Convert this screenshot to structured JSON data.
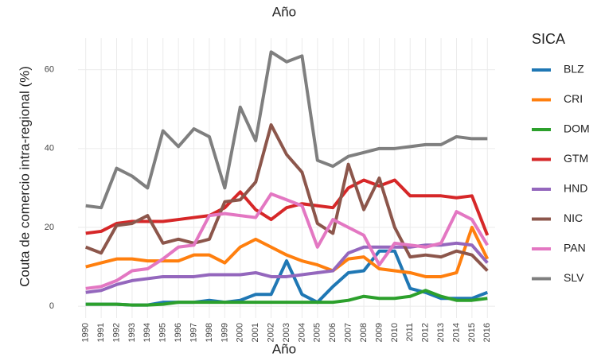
{
  "chart_data": {
    "type": "line",
    "title": "Año",
    "x_label": "Año",
    "y_label": "Couta de comercio intra-regional (%)",
    "legend_title": "SICA",
    "legend": "right",
    "grid": true,
    "x": [
      1990,
      1991,
      1992,
      1993,
      1994,
      1995,
      1996,
      1997,
      1998,
      1999,
      2000,
      2001,
      2002,
      2003,
      2004,
      2005,
      2006,
      2007,
      2008,
      2009,
      2010,
      2011,
      2012,
      2013,
      2014,
      2015,
      2016
    ],
    "xlim": [
      1989.5,
      2016.5
    ],
    "xticks": [
      1990,
      1991,
      1992,
      1993,
      1994,
      1995,
      1996,
      1997,
      1998,
      1999,
      2000,
      2001,
      2002,
      2003,
      2004,
      2005,
      2006,
      2007,
      2008,
      2009,
      2010,
      2011,
      2012,
      2013,
      2014,
      2015,
      2016
    ],
    "ylim": [
      -3,
      68
    ],
    "yticks": [
      0,
      20,
      40,
      60
    ],
    "series": [
      {
        "name": "BLZ",
        "color": "#1f77b4",
        "values": [
          0.5,
          0.5,
          0.5,
          0.3,
          0.3,
          1,
          1,
          1,
          1.5,
          1,
          1.5,
          3,
          3,
          11.5,
          3,
          1,
          5,
          8.5,
          9,
          14,
          14,
          4.5,
          3.5,
          2,
          2,
          2,
          3.5
        ]
      },
      {
        "name": "CRI",
        "color": "#ff7f0e",
        "values": [
          10,
          11,
          12,
          12,
          11.5,
          11.5,
          11.5,
          13,
          13,
          11,
          15,
          17,
          15,
          13,
          11.5,
          10.5,
          9,
          12,
          12.5,
          9.5,
          9,
          8.5,
          7.5,
          7.5,
          8.5,
          20,
          12
        ]
      },
      {
        "name": "DOM",
        "color": "#2ca02c",
        "values": [
          0.5,
          0.5,
          0.5,
          0.3,
          0.3,
          0.5,
          1,
          1,
          1,
          1,
          1,
          1,
          1,
          1,
          1,
          1,
          1,
          1.5,
          2.5,
          2,
          2,
          2.5,
          4,
          2.5,
          1.5,
          1.5,
          2
        ]
      },
      {
        "name": "GTM",
        "color": "#d62728",
        "values": [
          18.5,
          19,
          21,
          21.5,
          21.5,
          21.5,
          22,
          22.5,
          23,
          25,
          29,
          24.5,
          22,
          25,
          26,
          25.5,
          25,
          30,
          32,
          30.5,
          32,
          28,
          28,
          28,
          27.5,
          28,
          18
        ]
      },
      {
        "name": "HND",
        "color": "#9467bd",
        "values": [
          3.5,
          4,
          5.5,
          6.5,
          7,
          7.5,
          7.5,
          7.5,
          8,
          8,
          8,
          8.5,
          7.5,
          7.5,
          8,
          8.5,
          9,
          13.5,
          15,
          15,
          15,
          15,
          15.5,
          15.5,
          16,
          15.5,
          11
        ]
      },
      {
        "name": "NIC",
        "color": "#8c564b",
        "values": [
          15,
          13.5,
          20.5,
          21,
          23,
          16,
          17,
          16,
          17,
          26.5,
          27,
          31.5,
          46,
          38.5,
          34,
          21,
          18.5,
          36,
          24.5,
          32.5,
          20,
          12.5,
          13,
          12.5,
          14,
          13,
          9
        ]
      },
      {
        "name": "PAN",
        "color": "#e377c2",
        "values": [
          4.5,
          5,
          6.5,
          9,
          9.5,
          12,
          15,
          15.5,
          23,
          23.5,
          23,
          22.5,
          28.5,
          27,
          25.5,
          15,
          22,
          20,
          18,
          10.5,
          16,
          15.5,
          15,
          16,
          24,
          22,
          15.5
        ]
      },
      {
        "name": "SLV",
        "color": "#7f7f7f",
        "values": [
          25.5,
          25,
          35,
          33,
          30,
          44.5,
          40.5,
          45,
          43,
          30,
          50.5,
          42,
          64.5,
          62,
          63.5,
          37,
          35.5,
          38,
          39,
          40,
          40,
          40.5,
          41,
          41,
          43,
          42.5,
          42.5
        ]
      }
    ]
  }
}
